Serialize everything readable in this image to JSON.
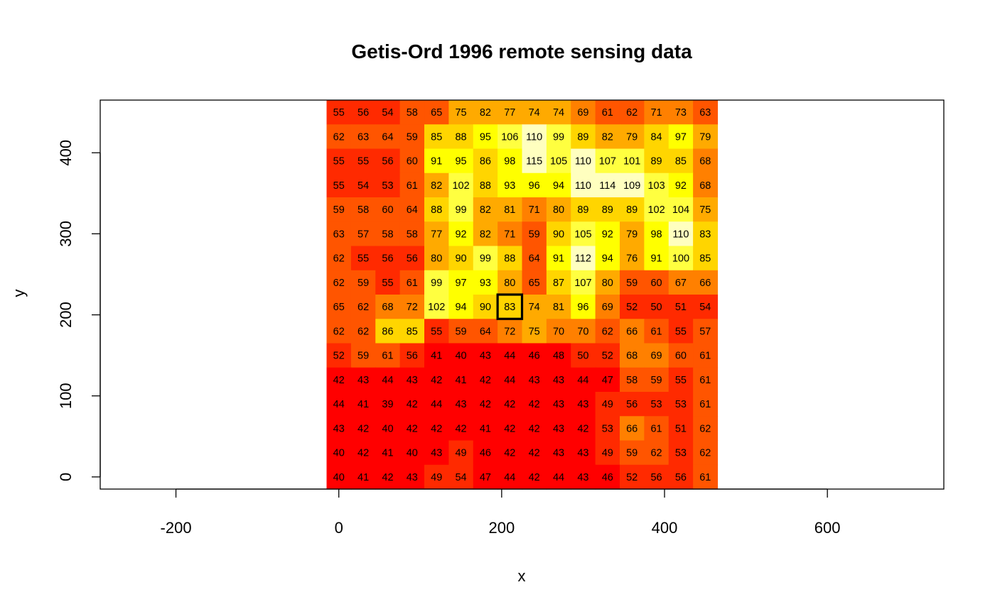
{
  "chart_data": {
    "type": "heatmap",
    "title": "Getis-Ord 1996 remote sensing data",
    "xlabel": "x",
    "ylabel": "y",
    "xlim": [
      -293,
      743
    ],
    "ylim": [
      -15,
      465
    ],
    "x_ticks": [
      "-200",
      "0",
      "200",
      "400",
      "600"
    ],
    "x_tick_values": [
      -200,
      0,
      200,
      400,
      600
    ],
    "y_ticks": [
      "0",
      "100",
      "200",
      "300",
      "400"
    ],
    "y_tick_values": [
      0,
      100,
      200,
      300,
      400
    ],
    "cell_size": 30,
    "x_centers": [
      0,
      30,
      60,
      90,
      120,
      150,
      180,
      210,
      240,
      270,
      300,
      330,
      360,
      390,
      420,
      450
    ],
    "y_centers_top_to_bottom": [
      450,
      420,
      390,
      360,
      330,
      300,
      270,
      240,
      210,
      180,
      150,
      120,
      90,
      60,
      30,
      0
    ],
    "rows_top_to_bottom": [
      [
        55,
        56,
        54,
        58,
        65,
        75,
        82,
        77,
        74,
        74,
        69,
        61,
        62,
        71,
        73,
        63
      ],
      [
        62,
        63,
        64,
        59,
        85,
        88,
        95,
        106,
        110,
        99,
        89,
        82,
        79,
        84,
        97,
        79
      ],
      [
        55,
        55,
        56,
        60,
        91,
        95,
        86,
        98,
        115,
        105,
        110,
        107,
        101,
        89,
        85,
        68
      ],
      [
        55,
        54,
        53,
        61,
        82,
        102,
        88,
        93,
        96,
        94,
        110,
        114,
        109,
        103,
        92,
        68
      ],
      [
        59,
        58,
        60,
        64,
        88,
        99,
        82,
        81,
        71,
        80,
        89,
        89,
        89,
        102,
        104,
        75
      ],
      [
        63,
        57,
        58,
        58,
        77,
        92,
        82,
        71,
        59,
        90,
        105,
        92,
        79,
        98,
        110,
        83
      ],
      [
        62,
        55,
        56,
        56,
        80,
        90,
        99,
        88,
        64,
        91,
        112,
        94,
        76,
        91,
        100,
        85
      ],
      [
        62,
        59,
        55,
        61,
        99,
        97,
        93,
        80,
        65,
        87,
        107,
        80,
        59,
        60,
        67,
        66
      ],
      [
        65,
        62,
        68,
        72,
        102,
        94,
        90,
        83,
        74,
        81,
        96,
        69,
        52,
        50,
        51,
        54
      ],
      [
        62,
        62,
        86,
        85,
        55,
        59,
        64,
        72,
        75,
        70,
        70,
        62,
        66,
        61,
        55,
        57
      ],
      [
        52,
        59,
        61,
        56,
        41,
        40,
        43,
        44,
        46,
        48,
        50,
        52,
        68,
        69,
        60,
        61
      ],
      [
        42,
        43,
        44,
        43,
        42,
        41,
        42,
        44,
        43,
        43,
        44,
        47,
        58,
        59,
        55,
        61
      ],
      [
        44,
        41,
        39,
        42,
        44,
        43,
        42,
        42,
        42,
        43,
        43,
        49,
        56,
        53,
        53,
        61
      ],
      [
        43,
        42,
        40,
        42,
        42,
        42,
        41,
        42,
        42,
        43,
        42,
        53,
        66,
        61,
        51,
        62
      ],
      [
        40,
        42,
        41,
        40,
        43,
        49,
        46,
        42,
        42,
        43,
        43,
        49,
        59,
        62,
        53,
        62
      ],
      [
        40,
        41,
        42,
        43,
        49,
        54,
        47,
        44,
        42,
        44,
        43,
        46,
        52,
        56,
        56,
        61
      ]
    ],
    "highlight_cell": {
      "x": 210,
      "y": 210,
      "value": 83
    },
    "color_scale": "heat",
    "colors": [
      "#FF0000",
      "#FF2A00",
      "#FF5500",
      "#FF8000",
      "#FFAA00",
      "#FFD500",
      "#FFFF00",
      "#FFFF40",
      "#FFFFBF"
    ],
    "value_breaks": [
      39,
      48,
      56,
      65,
      73,
      82,
      90,
      98,
      107,
      115
    ]
  }
}
